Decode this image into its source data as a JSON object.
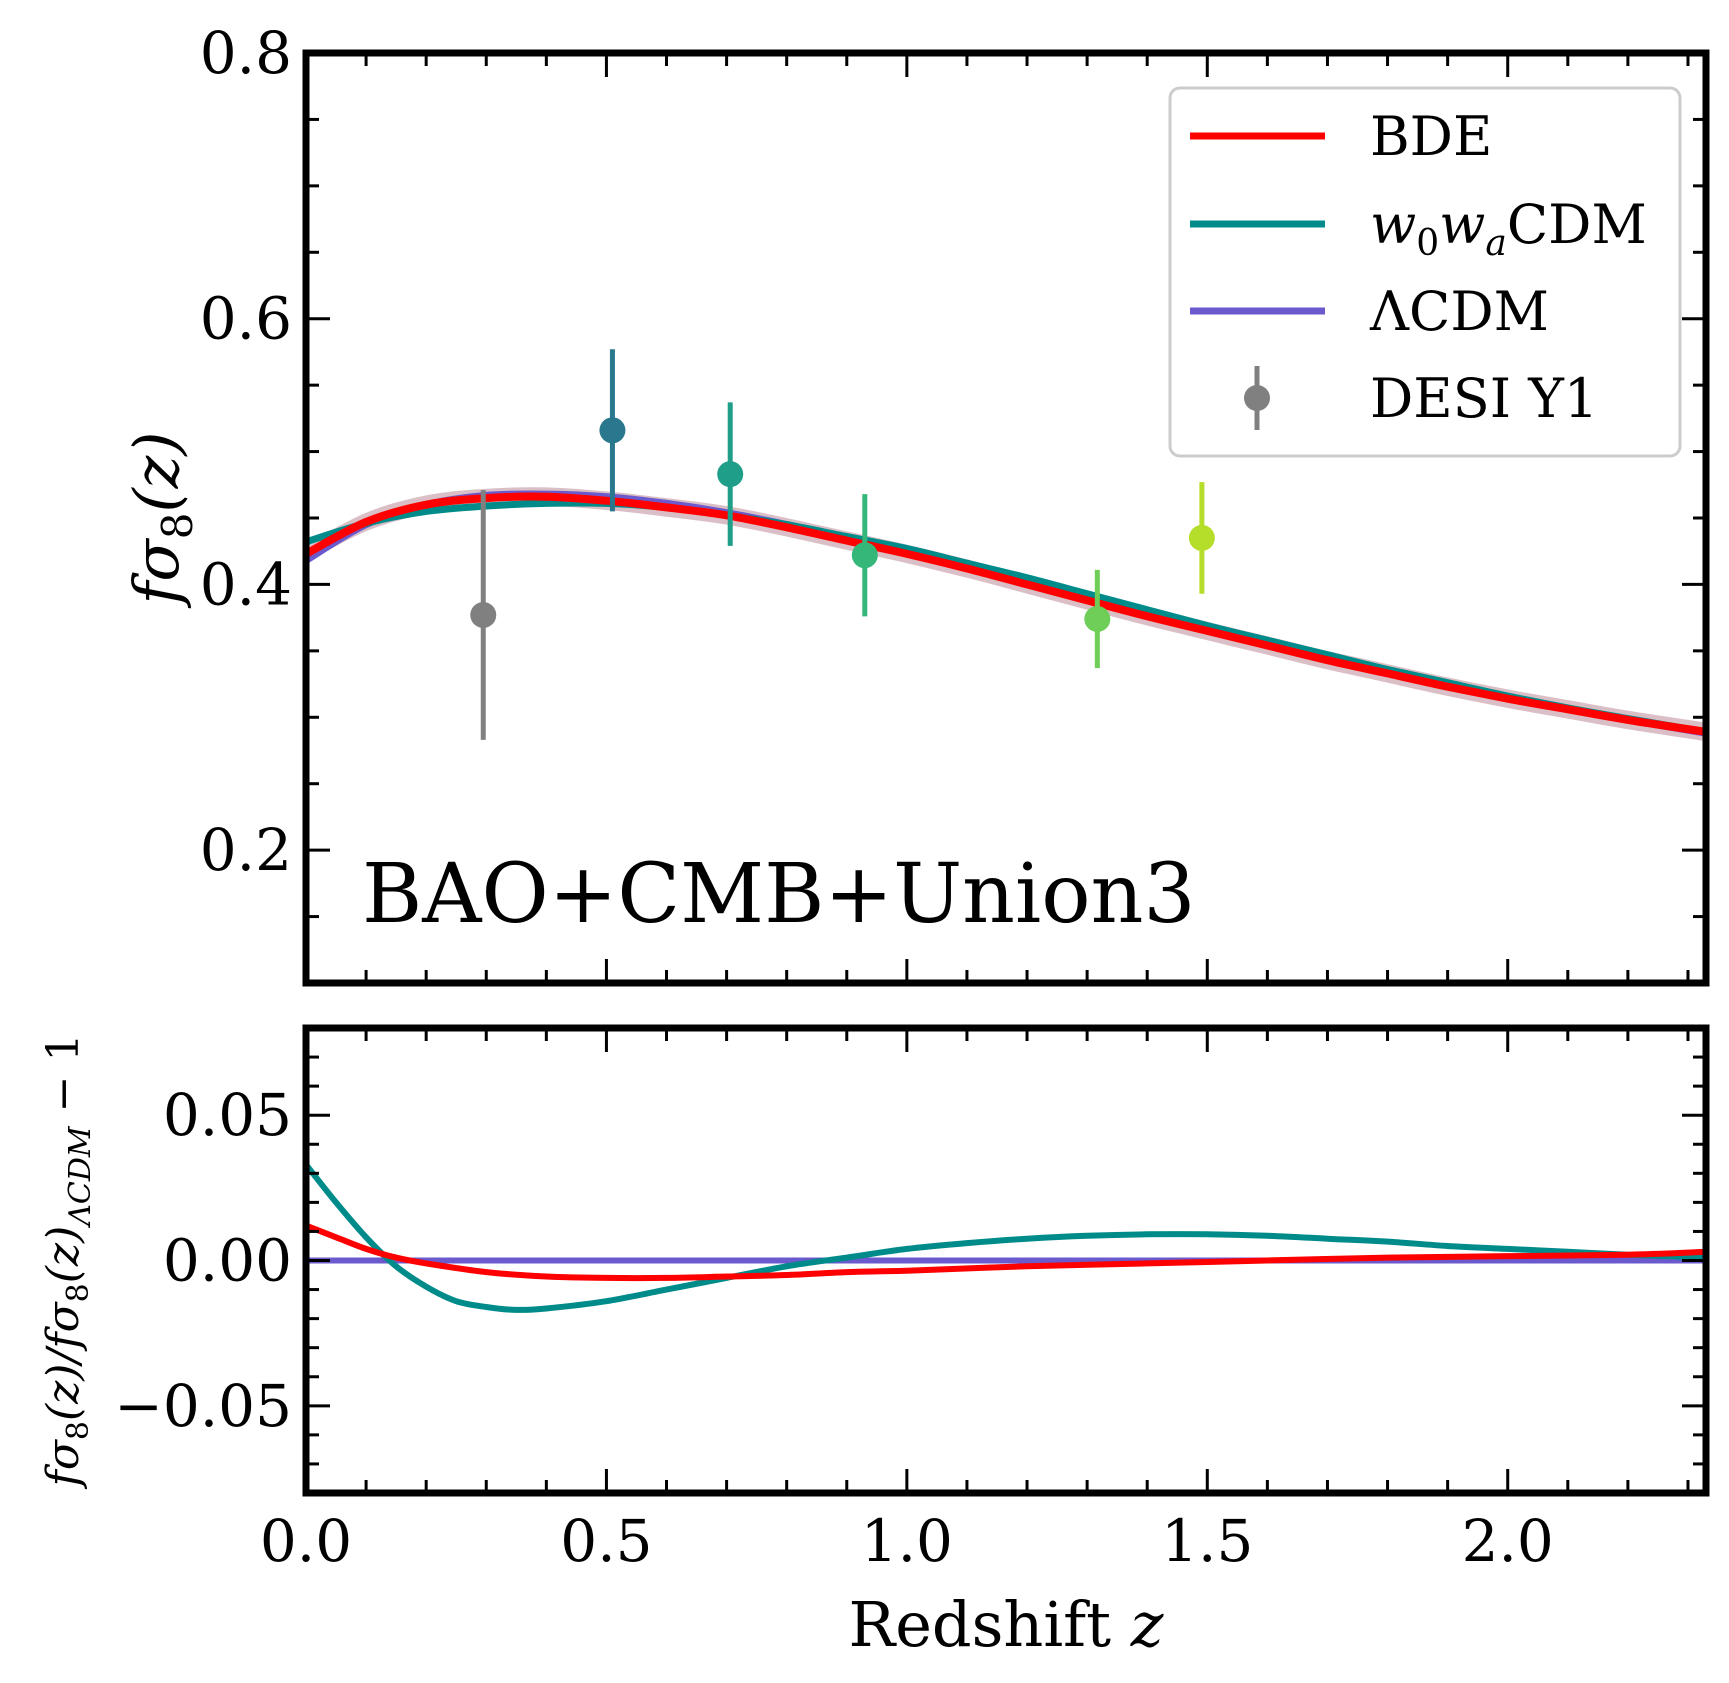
{
  "chart_data": [
    {
      "type": "line",
      "panel": "top",
      "ylabel": "fσ8(z)",
      "ylabel_parts": {
        "main": "fσ",
        "sub": "8",
        "arg": "(z)"
      },
      "ylim": [
        0.1,
        0.8
      ],
      "xlim": [
        0.0,
        2.33
      ],
      "yticks": [
        0.2,
        0.4,
        0.6,
        0.8
      ],
      "ytick_labels": [
        "0.2",
        "0.4",
        "0.6",
        "0.8"
      ],
      "annotation": "BAO+CMB+Union3",
      "legend": {
        "position": "top-right",
        "entries": [
          {
            "key": "bde",
            "label": "BDE",
            "kind": "line"
          },
          {
            "key": "w0wa",
            "label": "w0waCDM",
            "label_parts": {
              "w": "w",
              "s1": "0",
              "s2": "a",
              "rest": "CDM"
            },
            "kind": "line"
          },
          {
            "key": "lcdm",
            "label": "ΛCDM",
            "kind": "line"
          },
          {
            "key": "desi",
            "label": "DESI Y1",
            "kind": "errorbar"
          }
        ]
      },
      "series": [
        {
          "key": "lcdm",
          "name": "ΛCDM",
          "color": "#6a5acd",
          "x": [
            0.0,
            0.1,
            0.2,
            0.3,
            0.4,
            0.5,
            0.6,
            0.7,
            0.8,
            0.9,
            1.0,
            1.1,
            1.2,
            1.3,
            1.4,
            1.5,
            1.6,
            1.7,
            1.8,
            1.9,
            2.0,
            2.1,
            2.2,
            2.33
          ],
          "y": [
            0.418,
            0.445,
            0.46,
            0.467,
            0.468,
            0.466,
            0.461,
            0.454,
            0.445,
            0.435,
            0.424,
            0.413,
            0.401,
            0.389,
            0.377,
            0.365,
            0.354,
            0.343,
            0.333,
            0.323,
            0.314,
            0.306,
            0.298,
            0.288
          ]
        },
        {
          "key": "w0wa",
          "name": "w0waCDM",
          "color": "#008b8b",
          "x": [
            0.0,
            0.1,
            0.2,
            0.3,
            0.4,
            0.5,
            0.6,
            0.7,
            0.8,
            0.9,
            1.0,
            1.1,
            1.2,
            1.3,
            1.4,
            1.5,
            1.6,
            1.7,
            1.8,
            1.9,
            2.0,
            2.1,
            2.2,
            2.33
          ],
          "y": [
            0.432,
            0.446,
            0.455,
            0.459,
            0.461,
            0.461,
            0.458,
            0.452,
            0.445,
            0.436,
            0.427,
            0.416,
            0.405,
            0.393,
            0.381,
            0.369,
            0.358,
            0.347,
            0.336,
            0.326,
            0.316,
            0.307,
            0.299,
            0.289
          ]
        },
        {
          "key": "bde",
          "name": "BDE",
          "color": "#ff0000",
          "x": [
            0.0,
            0.1,
            0.2,
            0.3,
            0.4,
            0.5,
            0.6,
            0.7,
            0.8,
            0.9,
            1.0,
            1.1,
            1.2,
            1.3,
            1.4,
            1.5,
            1.6,
            1.7,
            1.8,
            1.9,
            2.0,
            2.1,
            2.2,
            2.33
          ],
          "y": [
            0.423,
            0.447,
            0.46,
            0.465,
            0.466,
            0.463,
            0.458,
            0.452,
            0.443,
            0.433,
            0.423,
            0.412,
            0.4,
            0.388,
            0.376,
            0.365,
            0.354,
            0.343,
            0.333,
            0.323,
            0.314,
            0.306,
            0.298,
            0.289
          ]
        }
      ],
      "band": {
        "name": "uncertainty band",
        "color": "#b07080",
        "halfwidth": 0.007
      },
      "points": [
        {
          "name": "DESI Y1",
          "x": 0.295,
          "y": 0.377,
          "err": 0.094,
          "color": "#808080"
        },
        {
          "name": "DESI Y1",
          "x": 0.51,
          "y": 0.516,
          "err": 0.061,
          "color": "#2a788e"
        },
        {
          "name": "DESI Y1",
          "x": 0.706,
          "y": 0.483,
          "err": 0.054,
          "color": "#1f9e89"
        },
        {
          "name": "DESI Y1",
          "x": 0.93,
          "y": 0.422,
          "err": 0.046,
          "color": "#35b779"
        },
        {
          "name": "DESI Y1",
          "x": 1.317,
          "y": 0.374,
          "err": 0.037,
          "color": "#6ece58"
        },
        {
          "name": "DESI Y1",
          "x": 1.491,
          "y": 0.435,
          "err": 0.042,
          "color": "#b5de2b"
        }
      ]
    },
    {
      "type": "line",
      "panel": "bottom",
      "xlabel": "Redshift z",
      "xlabel_parts": {
        "text": "Redshift",
        "var": "z"
      },
      "ylabel": "fσ8(z)/fσ8(z)ΛCDM − 1",
      "ylabel_parts": {
        "a": "fσ",
        "a_sub": "8",
        "a_arg": "(z)/fσ",
        "b_sub": "8",
        "b_arg": "(z)",
        "c_sub": "ΛCDM",
        "tail": " − 1"
      },
      "xlim": [
        0.0,
        2.33
      ],
      "ylim": [
        -0.08,
        0.08
      ],
      "xticks": [
        0.0,
        0.5,
        1.0,
        1.5,
        2.0
      ],
      "xtick_labels": [
        "0.0",
        "0.5",
        "1.0",
        "1.5",
        "2.0"
      ],
      "yticks": [
        -0.05,
        0.0,
        0.05
      ],
      "ytick_labels": [
        "−0.05",
        "0.00",
        "0.05"
      ],
      "series": [
        {
          "key": "lcdm",
          "name": "ΛCDM",
          "color": "#6a5acd",
          "x": [
            0.0,
            2.33
          ],
          "y": [
            0.0,
            0.0
          ]
        },
        {
          "key": "w0wa",
          "name": "w0waCDM",
          "color": "#008b8b",
          "x": [
            0.0,
            0.05,
            0.1,
            0.15,
            0.2,
            0.25,
            0.3,
            0.35,
            0.4,
            0.5,
            0.6,
            0.7,
            0.8,
            0.9,
            1.0,
            1.1,
            1.2,
            1.3,
            1.4,
            1.5,
            1.6,
            1.7,
            1.8,
            1.9,
            2.0,
            2.1,
            2.2,
            2.33
          ],
          "y": [
            0.033,
            0.02,
            0.008,
            -0.002,
            -0.009,
            -0.014,
            -0.016,
            -0.017,
            -0.0165,
            -0.014,
            -0.01,
            -0.006,
            -0.002,
            0.001,
            0.004,
            0.006,
            0.0075,
            0.0085,
            0.009,
            0.009,
            0.0085,
            0.0075,
            0.0065,
            0.005,
            0.004,
            0.003,
            0.002,
            0.001
          ]
        },
        {
          "key": "bde",
          "name": "BDE",
          "color": "#ff0000",
          "x": [
            0.0,
            0.05,
            0.1,
            0.15,
            0.2,
            0.3,
            0.4,
            0.5,
            0.6,
            0.7,
            0.8,
            0.9,
            1.0,
            1.2,
            1.4,
            1.6,
            1.8,
            2.0,
            2.2,
            2.33
          ],
          "y": [
            0.012,
            0.008,
            0.004,
            0.001,
            -0.001,
            -0.004,
            -0.0055,
            -0.006,
            -0.006,
            -0.0055,
            -0.005,
            -0.004,
            -0.0035,
            -0.002,
            -0.001,
            0.0,
            0.001,
            0.0015,
            0.002,
            0.003
          ]
        }
      ]
    }
  ]
}
